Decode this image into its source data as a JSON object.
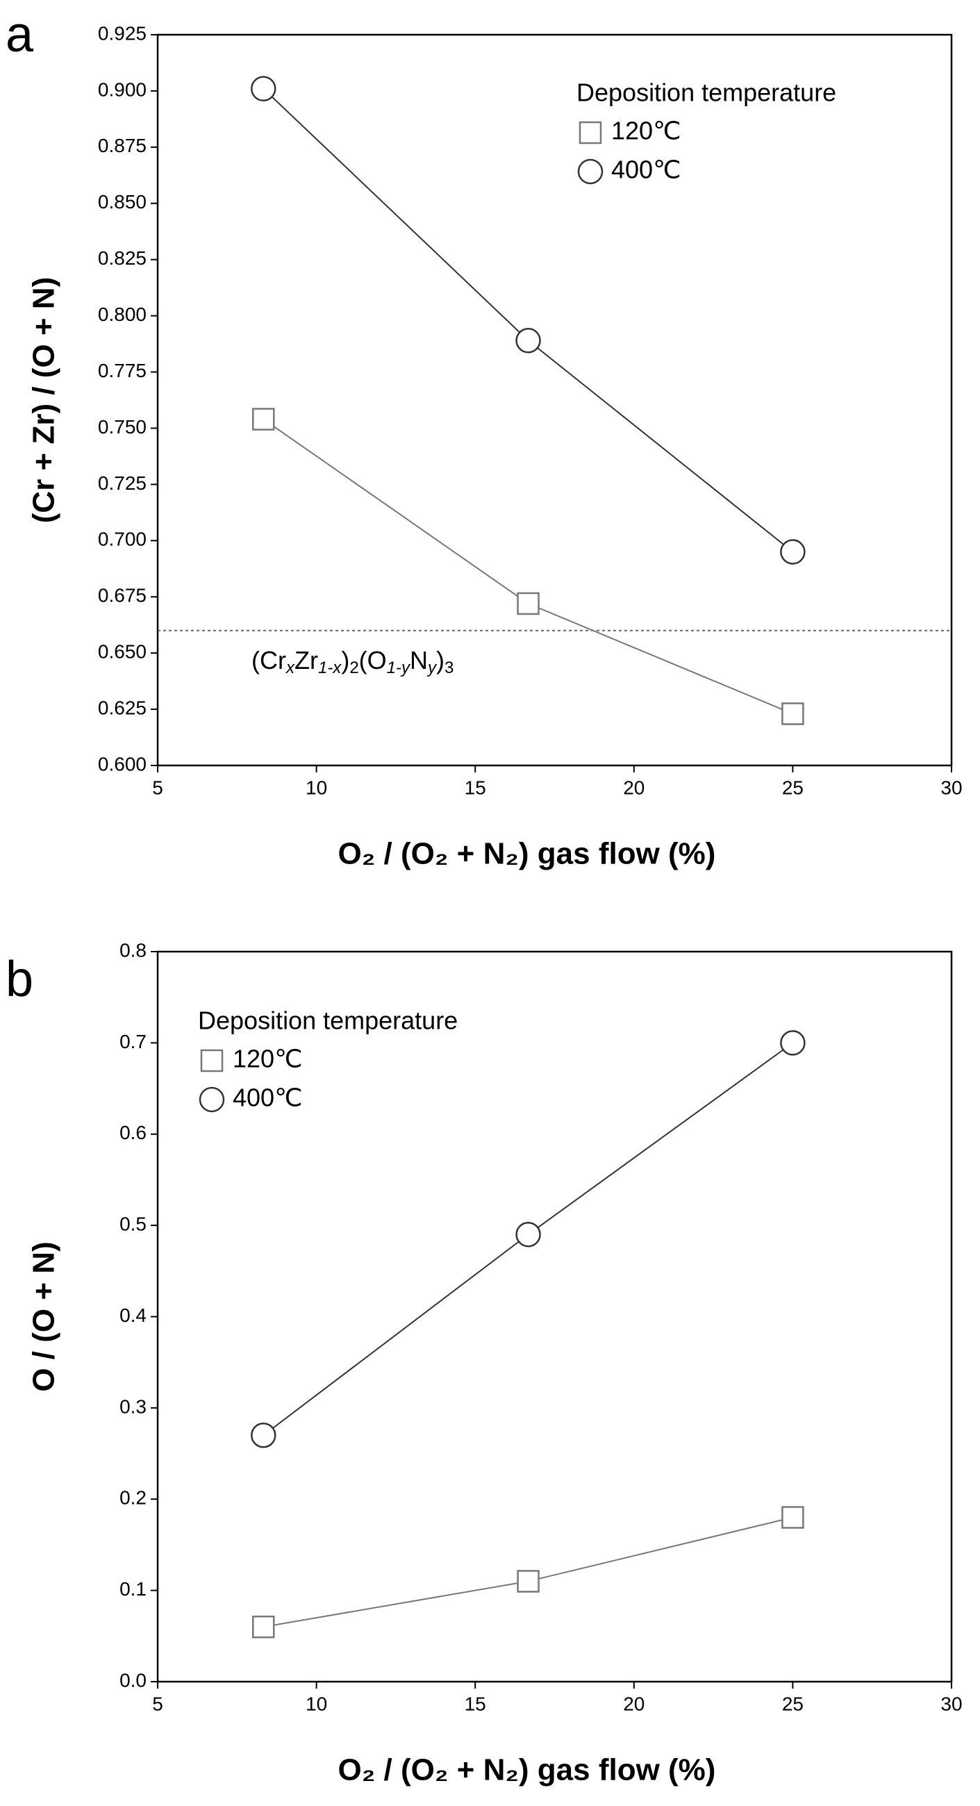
{
  "chart_data": [
    {
      "type": "line",
      "panel": "a",
      "ylabel": "(Cr + Zr) / (O + N)",
      "xlabel": "O₂ / (O₂ + N₂) gas flow (%)",
      "legend_title": "Deposition temperature",
      "legend_corner": "upper right",
      "x": [
        8.33,
        16.67,
        25
      ],
      "series": [
        {
          "name": "120℃",
          "color": "#777777",
          "marker": "square",
          "values": [
            0.754,
            0.672,
            0.623
          ]
        },
        {
          "name": "400℃",
          "color": "#333333",
          "marker": "circle",
          "values": [
            0.901,
            0.789,
            0.695
          ]
        }
      ],
      "reference_line": {
        "y": 0.66,
        "label_parts": [
          "(Cr",
          "x",
          "Zr",
          "1-x",
          ")",
          "2",
          "(O",
          "1-y",
          "N",
          "y",
          ")",
          "3"
        ]
      },
      "xlim": [
        5,
        30
      ],
      "xticks": [
        5,
        10,
        15,
        20,
        25,
        30
      ],
      "ylim": [
        0.6,
        0.925
      ],
      "yticks": [
        {
          "value": 0.6,
          "label": "0.600"
        },
        {
          "value": 0.625,
          "label": "0.625"
        },
        {
          "value": 0.65,
          "label": "0.650"
        },
        {
          "value": 0.675,
          "label": "0.675"
        },
        {
          "value": 0.7,
          "label": "0.700"
        },
        {
          "value": 0.725,
          "label": "0.725"
        },
        {
          "value": 0.75,
          "label": "0.750"
        },
        {
          "value": 0.775,
          "label": "0.775"
        },
        {
          "value": 0.8,
          "label": "0.800"
        },
        {
          "value": 0.825,
          "label": "0.825"
        },
        {
          "value": 0.85,
          "label": "0.850"
        },
        {
          "value": 0.875,
          "label": "0.875"
        },
        {
          "value": 0.9,
          "label": "0.900"
        },
        {
          "value": 0.925,
          "label": "0.925"
        }
      ]
    },
    {
      "type": "line",
      "panel": "b",
      "ylabel": "O / (O + N)",
      "xlabel": "O₂ / (O₂ + N₂) gas flow (%)",
      "legend_title": "Deposition temperature",
      "legend_corner": "upper left",
      "x": [
        8.33,
        16.67,
        25
      ],
      "series": [
        {
          "name": "120℃",
          "color": "#777777",
          "marker": "square",
          "values": [
            0.06,
            0.11,
            0.18
          ]
        },
        {
          "name": "400℃",
          "color": "#333333",
          "marker": "circle",
          "values": [
            0.27,
            0.49,
            0.7
          ]
        }
      ],
      "xlim": [
        5,
        30
      ],
      "xticks": [
        5,
        10,
        15,
        20,
        25,
        30
      ],
      "ylim": [
        0,
        0.8
      ],
      "yticks": [
        {
          "value": 0,
          "label": "0.0"
        },
        0.1,
        0.2,
        0.3,
        0.4,
        0.5,
        0.6,
        0.7,
        0.8
      ]
    }
  ]
}
